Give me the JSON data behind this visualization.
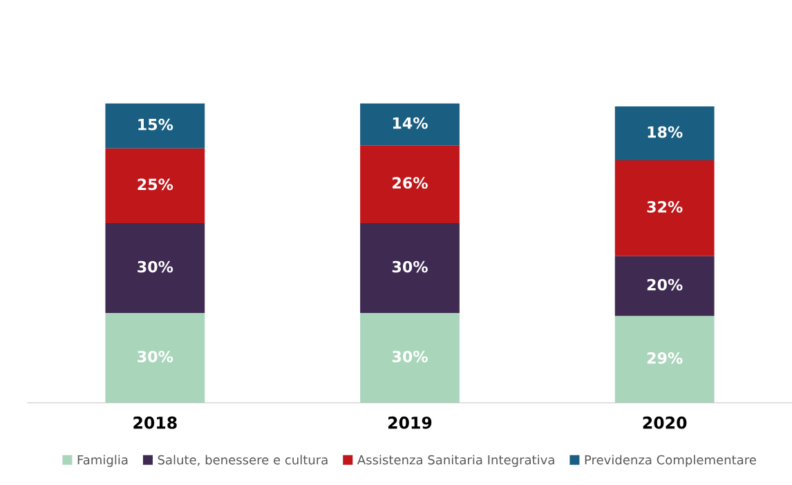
{
  "chart_data": {
    "type": "bar",
    "stacked": true,
    "categories": [
      "2018",
      "2019",
      "2020"
    ],
    "series": [
      {
        "name": "Famiglia",
        "color": "#a9d5bb",
        "values": [
          30,
          30,
          29
        ],
        "value_labels": [
          "30%",
          "30%",
          "29%"
        ]
      },
      {
        "name": "Salute, benessere e cultura",
        "color": "#3f2b52",
        "values": [
          30,
          30,
          20
        ],
        "value_labels": [
          "30%",
          "30%",
          "20%"
        ]
      },
      {
        "name": "Assistenza Sanitaria Integrativa",
        "color": "#c0171a",
        "values": [
          25,
          26,
          32
        ],
        "value_labels": [
          "25%",
          "26%",
          "32%"
        ]
      },
      {
        "name": "Previdenza Complementare",
        "color": "#1a5e82",
        "values": [
          15,
          14,
          18
        ],
        "value_labels": [
          "15%",
          "14%",
          "18%"
        ]
      }
    ],
    "legend": "bottom"
  }
}
